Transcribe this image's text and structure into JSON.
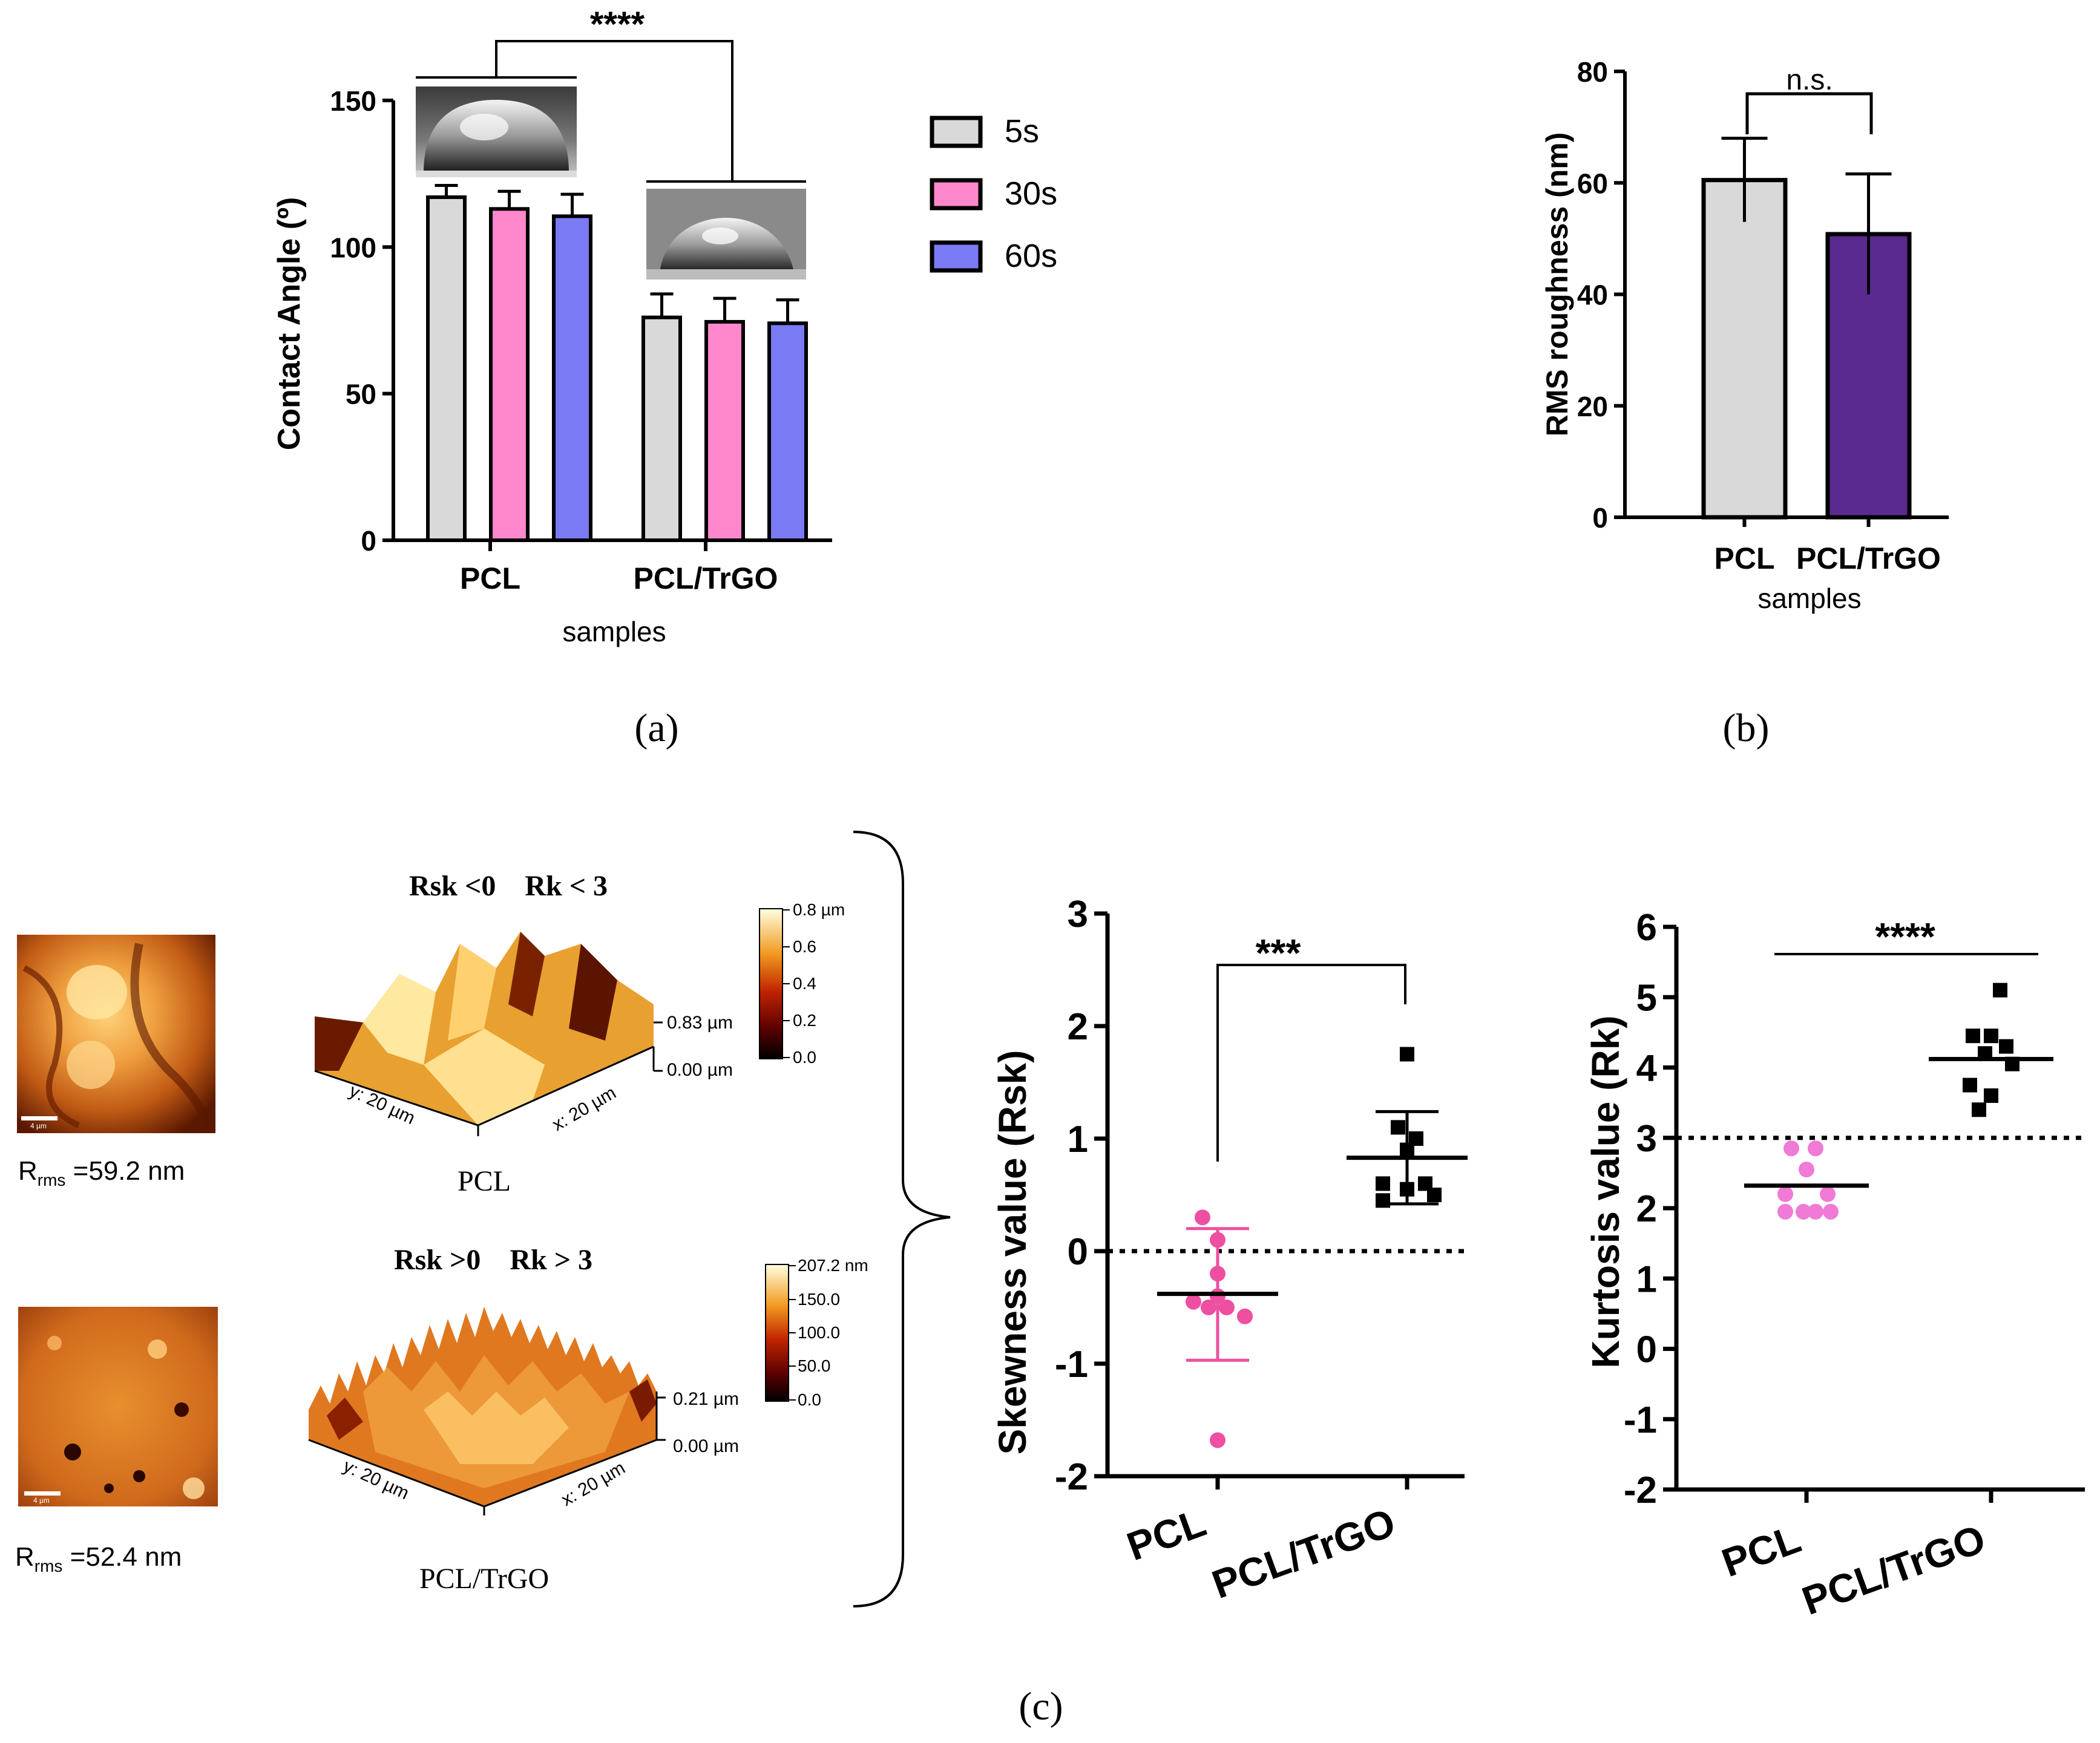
{
  "panel_labels": {
    "a": "(a)",
    "b": "(b)",
    "c": "(c)"
  },
  "chart_data": [
    {
      "id": "a",
      "type": "bar",
      "title": "",
      "xlabel": "samples",
      "ylabel": "Contact Angle (º)",
      "ylim": [
        0,
        150
      ],
      "yticks": [
        "0",
        "50",
        "100",
        "150"
      ],
      "categories": [
        "PCL",
        "PCL/TrGO"
      ],
      "series": [
        {
          "name": "5s",
          "color": "#d9d9d9",
          "values": [
            117,
            76
          ],
          "errors": [
            4,
            8
          ]
        },
        {
          "name": "30s",
          "color": "#ff88cc",
          "values": [
            113,
            74.5
          ],
          "errors": [
            6,
            8
          ]
        },
        {
          "name": "60s",
          "color": "#7b7bf5",
          "values": [
            110.5,
            74
          ],
          "errors": [
            7.5,
            8
          ]
        }
      ],
      "significance": "****",
      "legend": "right"
    },
    {
      "id": "b",
      "type": "bar",
      "xlabel": "samples",
      "ylabel": "RMS roughness (nm)",
      "ylim": [
        0,
        80
      ],
      "yticks": [
        "0",
        "20",
        "40",
        "60",
        "80"
      ],
      "categories": [
        "PCL",
        "PCL/TrGO"
      ],
      "colors": [
        "#d9d9d9",
        "#5b2a91"
      ],
      "values": [
        60.5,
        50.8
      ],
      "errors": [
        7.5,
        10.8
      ],
      "significance": "n.s."
    },
    {
      "id": "c-skewness",
      "type": "scatter",
      "ylabel": "Skewness value (Rsk)",
      "ylim": [
        -2,
        3
      ],
      "yticks": [
        "-2",
        "-1",
        "0",
        "1",
        "2",
        "3"
      ],
      "categories": [
        "PCL",
        "PCL/TrGO"
      ],
      "reference_line": 0,
      "significance": "***",
      "series": [
        {
          "name": "PCL",
          "marker": "circle",
          "color": "#ee4fa0",
          "points": [
            [
              -0.25,
              0.3
            ],
            [
              0.0,
              0.1
            ],
            [
              0.0,
              -0.2
            ],
            [
              0.0,
              -0.4
            ],
            [
              -0.4,
              -0.45
            ],
            [
              -0.15,
              -0.5
            ],
            [
              0.15,
              -0.5
            ],
            [
              0.45,
              -0.58
            ],
            [
              0.0,
              -1.68
            ]
          ],
          "mean": -0.38,
          "sd_high": 0.2,
          "sd_low": -0.97
        },
        {
          "name": "PCL/TrGO",
          "marker": "square",
          "color": "#000000",
          "points": [
            [
              0.0,
              1.75
            ],
            [
              -0.15,
              1.1
            ],
            [
              0.15,
              1.0
            ],
            [
              0.0,
              0.9
            ],
            [
              -0.4,
              0.6
            ],
            [
              0.3,
              0.6
            ],
            [
              -0.4,
              0.45
            ],
            [
              0.0,
              0.55
            ],
            [
              0.45,
              0.5
            ]
          ],
          "mean": 0.83,
          "sd_high": 1.24,
          "sd_low": 0.42
        }
      ]
    },
    {
      "id": "c-kurtosis",
      "type": "scatter",
      "ylabel": "Kurtosis value (Rk)",
      "ylim": [
        -2,
        6
      ],
      "yticks": [
        "-2",
        "-1",
        "0",
        "1",
        "2",
        "3",
        "4",
        "5",
        "6"
      ],
      "categories": [
        "PCL",
        "PCL/TrGO"
      ],
      "reference_line": 3,
      "significance": "****",
      "series": [
        {
          "name": "PCL",
          "marker": "circle",
          "color": "#f07ad6",
          "points": [
            [
              -0.25,
              2.85
            ],
            [
              0.15,
              2.85
            ],
            [
              0.0,
              2.55
            ],
            [
              -0.35,
              2.2
            ],
            [
              0.35,
              2.2
            ],
            [
              -0.35,
              1.95
            ],
            [
              -0.05,
              1.95
            ],
            [
              0.15,
              1.95
            ],
            [
              0.4,
              1.95
            ]
          ],
          "mean": 2.32
        },
        {
          "name": "PCL/TrGO",
          "marker": "square",
          "color": "#000000",
          "points": [
            [
              0.15,
              5.1
            ],
            [
              -0.3,
              4.45
            ],
            [
              0.0,
              4.45
            ],
            [
              0.25,
              4.3
            ],
            [
              -0.1,
              4.2
            ],
            [
              0.35,
              4.05
            ],
            [
              -0.35,
              3.75
            ],
            [
              0.0,
              3.6
            ],
            [
              -0.2,
              3.4
            ]
          ],
          "mean": 4.12
        }
      ]
    }
  ],
  "afm": {
    "top": {
      "rms_prefix": "R",
      "rms_sub": "rms",
      "rms_value": " =59.2 nm",
      "scalebar": "4 µm",
      "header": "Rsk <0    Rk < 3",
      "caption": "PCL",
      "colorbar_ticks": [
        "0.8 µm",
        "0.6",
        "0.4",
        "0.2",
        "0.0"
      ],
      "z_ticks": [
        "0.83 µm",
        "0.00 µm"
      ],
      "axis_y": "y: 20 µm",
      "axis_x": "x: 20 µm"
    },
    "bottom": {
      "rms_prefix": "R",
      "rms_sub": "rms",
      "rms_value": " =52.4 nm",
      "scalebar": "4 µm",
      "header": "Rsk >0    Rk > 3",
      "caption": "PCL/TrGO",
      "colorbar_ticks": [
        "207.2 nm",
        "150.0",
        "100.0",
        "50.0",
        "0.0"
      ],
      "z_ticks": [
        "0.21 µm",
        "0.00 µm"
      ],
      "axis_y": "y: 20 µm",
      "axis_x": "x: 20 µm"
    }
  }
}
